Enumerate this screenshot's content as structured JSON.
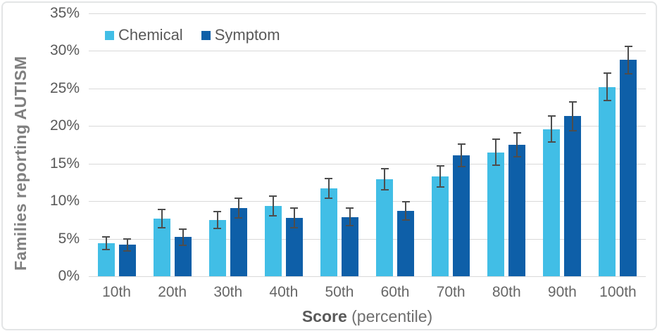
{
  "chart_data": {
    "type": "bar",
    "title": "",
    "ylabel": "Families reporting AUTISM",
    "xlabel": "Score (percentile)",
    "xlabel_primary": "Score",
    "xlabel_secondary": " (percentile)",
    "categories": [
      "10th",
      "20th",
      "30th",
      "40th",
      "50th",
      "60th",
      "70th",
      "80th",
      "90th",
      "100th"
    ],
    "series": [
      {
        "name": "Chemical",
        "color": "#41bee6",
        "values": [
          4.4,
          7.7,
          7.5,
          9.4,
          11.7,
          12.9,
          13.3,
          16.5,
          19.6,
          25.2
        ],
        "error_bars": [
          0.9,
          1.3,
          1.2,
          1.4,
          1.4,
          1.5,
          1.5,
          1.8,
          1.8,
          1.9
        ]
      },
      {
        "name": "Symptom",
        "color": "#0e5fa8",
        "values": [
          4.2,
          5.2,
          9.1,
          7.8,
          7.9,
          8.7,
          16.1,
          17.5,
          21.3,
          28.8
        ],
        "error_bars": [
          0.9,
          1.2,
          1.4,
          1.4,
          1.3,
          1.3,
          1.6,
          1.7,
          2.0,
          1.9
        ]
      }
    ],
    "y_ticks": [
      "0%",
      "5%",
      "10%",
      "15%",
      "20%",
      "25%",
      "30%",
      "35%"
    ],
    "y_tick_step": 5,
    "ylim": [
      0,
      35
    ],
    "grid": true,
    "legend_position": "top-left",
    "error_bar_style": "plus-minus whiskers with caps"
  },
  "style": {
    "grid_color": "#d9d9d9",
    "error_bar_color": "#4d4d4d",
    "tick_label_color": "#595959",
    "axis_title_color": "#7f7f7f",
    "frame_border_color": "#e3e5e6",
    "background": "#ffffff"
  }
}
